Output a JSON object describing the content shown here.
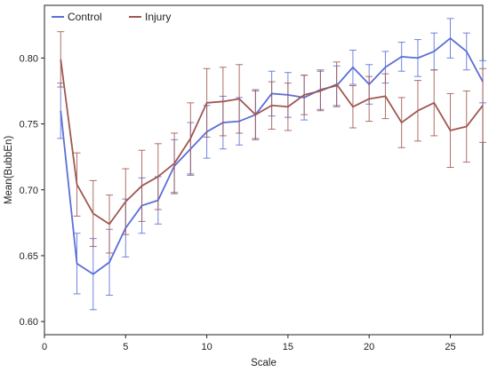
{
  "chart_data": {
    "type": "line",
    "xlabel": "Scale",
    "ylabel": "Mean(BubbEn)",
    "xlim": [
      0,
      27
    ],
    "ylim": [
      0.59,
      0.84
    ],
    "xticks": [
      0,
      5,
      10,
      15,
      20,
      25
    ],
    "yticks": [
      0.6,
      0.65,
      0.7,
      0.75,
      0.8
    ],
    "x": [
      1,
      2,
      3,
      4,
      5,
      6,
      7,
      8,
      9,
      10,
      11,
      12,
      13,
      14,
      15,
      16,
      17,
      18,
      19,
      20,
      21,
      22,
      23,
      24,
      25,
      26,
      27
    ],
    "grid": false,
    "legend_position": "top-left",
    "series": [
      {
        "name": "Control",
        "color": "#5b6fd6",
        "values": [
          0.76,
          0.644,
          0.636,
          0.645,
          0.671,
          0.688,
          0.692,
          0.718,
          0.731,
          0.744,
          0.751,
          0.752,
          0.757,
          0.773,
          0.772,
          0.77,
          0.776,
          0.779,
          0.793,
          0.78,
          0.793,
          0.801,
          0.8,
          0.805,
          0.815,
          0.805,
          0.782
        ],
        "err": [
          0.021,
          0.023,
          0.027,
          0.025,
          0.022,
          0.021,
          0.018,
          0.02,
          0.02,
          0.02,
          0.02,
          0.018,
          0.018,
          0.017,
          0.017,
          0.017,
          0.015,
          0.015,
          0.013,
          0.015,
          0.012,
          0.011,
          0.014,
          0.014,
          0.015,
          0.014,
          0.016
        ]
      },
      {
        "name": "Injury",
        "color": "#a0574f",
        "values": [
          0.799,
          0.704,
          0.682,
          0.674,
          0.691,
          0.703,
          0.71,
          0.72,
          0.739,
          0.766,
          0.767,
          0.769,
          0.757,
          0.764,
          0.763,
          0.772,
          0.775,
          0.78,
          0.763,
          0.769,
          0.771,
          0.751,
          0.76,
          0.766,
          0.745,
          0.748,
          0.764
        ],
        "err": [
          0.021,
          0.024,
          0.025,
          0.022,
          0.025,
          0.027,
          0.025,
          0.023,
          0.027,
          0.026,
          0.026,
          0.026,
          0.019,
          0.018,
          0.018,
          0.015,
          0.015,
          0.017,
          0.016,
          0.017,
          0.017,
          0.019,
          0.023,
          0.025,
          0.028,
          0.027,
          0.028
        ]
      }
    ]
  }
}
